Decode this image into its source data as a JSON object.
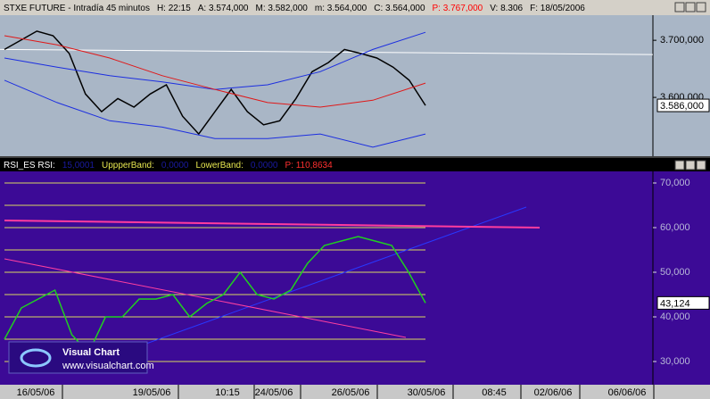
{
  "chart_data": [
    {
      "type": "line",
      "title_segments": [
        {
          "text": "STXE FUTURE - Intradía 45 minutos",
          "color": "#000000"
        },
        {
          "text": "H: 22:15",
          "color": "#000000"
        },
        {
          "text": "A: 3.574,000",
          "color": "#000000"
        },
        {
          "text": "M: 3.582,000",
          "color": "#000000"
        },
        {
          "text": "m: 3.564,000",
          "color": "#000000"
        },
        {
          "text": "C: 3.564,000",
          "color": "#000000"
        },
        {
          "text": "P: 3.767,000",
          "color": "#ff0000"
        },
        {
          "text": "V: 8.306",
          "color": "#000000"
        },
        {
          "text": "F: 18/05/2006",
          "color": "#000000"
        }
      ],
      "background": "#a9b6c6",
      "ylim": [
        3497,
        3744
      ],
      "yticks": [
        {
          "value": 3700,
          "label": "3.700,000"
        },
        {
          "value": 3600,
          "label": "3.600,000"
        }
      ],
      "last_value": {
        "value": 3586,
        "label": "3.586,000"
      },
      "series": [
        {
          "color": "#000000",
          "values": [
            3684,
            3700,
            3716,
            3708,
            3677,
            3606,
            3575,
            3598,
            3583,
            3606,
            3622,
            3567,
            3536,
            3575,
            3614,
            3575,
            3552,
            3559,
            3598,
            3645,
            3661,
            3684,
            3677,
            3669,
            3653,
            3630,
            3586
          ]
        },
        {
          "color": "#1c2ee0",
          "values": [
            3669,
            3653,
            3638,
            3627,
            3614,
            3622,
            3645,
            3684,
            3714
          ]
        },
        {
          "color": "#1c2ee0",
          "values": [
            3630,
            3591,
            3559,
            3548,
            3528,
            3528,
            3536,
            3513,
            3536
          ]
        },
        {
          "color": "#e01818",
          "values": [
            3708,
            3692,
            3669,
            3638,
            3614,
            3591,
            3583,
            3595,
            3625
          ]
        }
      ],
      "trendlines": [
        {
          "color": "#ffffff",
          "values": [
            3684,
            3675
          ]
        }
      ]
    },
    {
      "type": "line",
      "title_segments": [
        {
          "text": "RSI_ES RSI:",
          "color": "#ffffff"
        },
        {
          "text": "15,0001",
          "color": "#1a1aa0"
        },
        {
          "text": "UppperBand:",
          "color": "#e8e850"
        },
        {
          "text": "0,0000",
          "color": "#1a1aa0"
        },
        {
          "text": "LowerBand:",
          "color": "#e8e850"
        },
        {
          "text": "0,0000",
          "color": "#1a1aa0"
        },
        {
          "text": "P: 110,8634",
          "color": "#ff3030"
        }
      ],
      "background": "#3c0a96",
      "ylim": [
        24.8,
        72.6
      ],
      "yticks": [
        {
          "value": 70,
          "label": "70,000"
        },
        {
          "value": 60,
          "label": "60,000"
        },
        {
          "value": 50,
          "label": "50,000"
        },
        {
          "value": 40,
          "label": "40,000"
        },
        {
          "value": 30,
          "label": "30,000"
        }
      ],
      "levels": [
        70,
        65,
        60,
        55,
        50,
        45,
        40,
        35,
        30
      ],
      "level_color": "#d8d860",
      "last_value": {
        "value": 43.124,
        "label": "43,124"
      },
      "series": [
        {
          "color": "#20d020",
          "values": [
            35,
            42,
            44,
            46,
            36,
            32,
            40,
            40,
            44,
            44,
            45,
            40,
            43,
            45,
            50,
            45,
            44,
            46,
            52,
            56,
            57,
            58,
            57,
            56,
            50,
            43.124
          ]
        }
      ],
      "trendlines": [
        {
          "color": "#2838ff",
          "values": [
            33,
            64.6
          ]
        },
        {
          "color": "#ff40a0",
          "values": [
            53,
            35.4
          ]
        },
        {
          "color": "#ff3c9e",
          "values": [
            61.6,
            60
          ]
        }
      ]
    }
  ],
  "x_axis_labels": [
    "16/05/06",
    "19/05/06",
    "10:15",
    "24/05/06",
    "26/05/06",
    "30/05/06",
    "08:45",
    "02/06/06",
    "06/06/06"
  ],
  "logo": {
    "title": "Visual Chart",
    "url": "www.visualchart.com"
  }
}
